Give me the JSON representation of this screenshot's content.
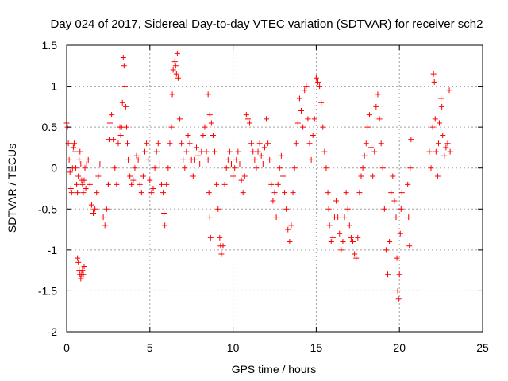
{
  "chart_data": {
    "type": "scatter",
    "title": "Day 024 of 2017, Sidereal Day-to-day VTEC variation (SDTVAR) for receiver sch2",
    "xlabel": "GPS time / hours",
    "ylabel": "SDTVAR / TECUs",
    "xlim": [
      0,
      25
    ],
    "ylim": [
      -2,
      1.5
    ],
    "grid": true,
    "marker": "+",
    "x_ticks": [
      0,
      5,
      10,
      15,
      20,
      25
    ],
    "y_ticks": [
      -2,
      -1.5,
      -1,
      -0.5,
      0,
      0.5,
      1,
      1.5
    ],
    "x_tick_labels": [
      "0",
      "5",
      "10",
      "15",
      "20",
      "25"
    ],
    "y_tick_labels": [
      "-2",
      "-1.5",
      "-1",
      "-0.5",
      "0",
      "0.5",
      "1",
      "1.5"
    ],
    "colors": {
      "points": "#ff0000",
      "grid": "#a0a0a0",
      "axes": "#000000"
    },
    "series": [
      {
        "name": "SDTVAR",
        "points": [
          [
            0.0,
            0.55
          ],
          [
            0.05,
            0.5
          ],
          [
            0.1,
            0.3
          ],
          [
            0.15,
            0.1
          ],
          [
            0.2,
            -0.05
          ],
          [
            0.25,
            -0.25
          ],
          [
            0.3,
            -0.3
          ],
          [
            0.35,
            0.0
          ],
          [
            0.4,
            0.25
          ],
          [
            0.45,
            0.3
          ],
          [
            0.5,
            0.2
          ],
          [
            0.55,
            0.0
          ],
          [
            0.6,
            -0.2
          ],
          [
            0.65,
            -0.3
          ],
          [
            0.7,
            -0.1
          ],
          [
            0.75,
            0.1
          ],
          [
            0.8,
            0.2
          ],
          [
            0.85,
            0.05
          ],
          [
            0.9,
            -0.15
          ],
          [
            0.95,
            -0.2
          ],
          [
            1.0,
            -0.3
          ],
          [
            1.05,
            -0.15
          ],
          [
            1.1,
            0.0
          ],
          [
            1.15,
            -0.25
          ],
          [
            0.65,
            -1.1
          ],
          [
            0.7,
            -1.15
          ],
          [
            0.75,
            -1.25
          ],
          [
            0.8,
            -1.3
          ],
          [
            0.85,
            -1.35
          ],
          [
            0.9,
            -1.3
          ],
          [
            0.95,
            -1.25
          ],
          [
            1.0,
            -1.3
          ],
          [
            1.05,
            -1.2
          ],
          [
            1.2,
            0.05
          ],
          [
            1.3,
            0.1
          ],
          [
            1.4,
            -0.2
          ],
          [
            1.5,
            -0.45
          ],
          [
            1.6,
            -0.55
          ],
          [
            1.7,
            -0.5
          ],
          [
            1.8,
            -0.3
          ],
          [
            1.9,
            -0.1
          ],
          [
            2.0,
            0.05
          ],
          [
            2.2,
            -0.6
          ],
          [
            2.3,
            -0.7
          ],
          [
            2.4,
            -0.5
          ],
          [
            2.5,
            -0.2
          ],
          [
            2.55,
            0.35
          ],
          [
            2.6,
            0.55
          ],
          [
            2.7,
            0.65
          ],
          [
            2.8,
            0.35
          ],
          [
            2.9,
            0.0
          ],
          [
            3.0,
            -0.2
          ],
          [
            3.1,
            0.3
          ],
          [
            3.2,
            0.5
          ],
          [
            3.25,
            0.4
          ],
          [
            3.3,
            0.5
          ],
          [
            3.35,
            0.8
          ],
          [
            3.4,
            1.35
          ],
          [
            3.45,
            1.25
          ],
          [
            3.5,
            1.0
          ],
          [
            3.55,
            0.75
          ],
          [
            3.6,
            0.5
          ],
          [
            3.65,
            0.3
          ],
          [
            3.7,
            0.1
          ],
          [
            3.8,
            -0.1
          ],
          [
            3.9,
            -0.2
          ],
          [
            4.0,
            -0.15
          ],
          [
            4.1,
            0.0
          ],
          [
            4.2,
            0.15
          ],
          [
            4.3,
            0.1
          ],
          [
            4.4,
            -0.2
          ],
          [
            4.5,
            -0.3
          ],
          [
            4.6,
            -0.1
          ],
          [
            4.7,
            0.2
          ],
          [
            4.8,
            0.3
          ],
          [
            4.9,
            0.1
          ],
          [
            5.0,
            -0.15
          ],
          [
            5.1,
            -0.3
          ],
          [
            5.2,
            -0.25
          ],
          [
            5.3,
            0.0
          ],
          [
            5.4,
            0.2
          ],
          [
            5.5,
            0.3
          ],
          [
            5.6,
            0.05
          ],
          [
            5.7,
            -0.2
          ],
          [
            5.8,
            -0.3
          ],
          [
            5.85,
            -0.55
          ],
          [
            5.9,
            -0.7
          ],
          [
            6.0,
            -0.2
          ],
          [
            6.1,
            0.0
          ],
          [
            6.2,
            0.3
          ],
          [
            6.3,
            0.5
          ],
          [
            6.35,
            0.9
          ],
          [
            6.4,
            1.2
          ],
          [
            6.5,
            1.3
          ],
          [
            6.55,
            1.25
          ],
          [
            6.6,
            1.15
          ],
          [
            6.65,
            1.4
          ],
          [
            6.7,
            1.1
          ],
          [
            6.8,
            0.6
          ],
          [
            6.9,
            0.3
          ],
          [
            7.0,
            0.1
          ],
          [
            7.1,
            0.0
          ],
          [
            7.2,
            0.2
          ],
          [
            7.3,
            0.4
          ],
          [
            7.4,
            0.3
          ],
          [
            7.5,
            0.1
          ],
          [
            7.6,
            -0.1
          ],
          [
            7.7,
            0.1
          ],
          [
            7.8,
            0.25
          ],
          [
            7.9,
            0.15
          ],
          [
            8.0,
            0.05
          ],
          [
            8.1,
            0.2
          ],
          [
            8.2,
            0.4
          ],
          [
            8.3,
            0.5
          ],
          [
            8.4,
            0.2
          ],
          [
            8.5,
            0.1
          ],
          [
            8.55,
            -0.3
          ],
          [
            8.6,
            -0.6
          ],
          [
            8.65,
            -0.85
          ],
          [
            8.5,
            0.9
          ],
          [
            8.6,
            0.65
          ],
          [
            8.7,
            0.55
          ],
          [
            8.8,
            0.4
          ],
          [
            8.9,
            0.2
          ],
          [
            9.0,
            -0.2
          ],
          [
            9.1,
            -0.5
          ],
          [
            9.2,
            -0.85
          ],
          [
            9.25,
            -0.95
          ],
          [
            9.3,
            -1.05
          ],
          [
            9.4,
            -0.95
          ],
          [
            9.5,
            -0.2
          ],
          [
            9.6,
            0.0
          ],
          [
            9.7,
            0.1
          ],
          [
            9.8,
            0.2
          ],
          [
            9.9,
            0.05
          ],
          [
            10.0,
            -0.1
          ],
          [
            10.1,
            0.0
          ],
          [
            10.2,
            0.1
          ],
          [
            10.3,
            0.2
          ],
          [
            10.4,
            0.05
          ],
          [
            10.5,
            -0.15
          ],
          [
            10.6,
            -0.3
          ],
          [
            10.7,
            -0.1
          ],
          [
            10.8,
            0.65
          ],
          [
            10.9,
            0.6
          ],
          [
            11.0,
            0.55
          ],
          [
            11.1,
            0.3
          ],
          [
            11.2,
            0.2
          ],
          [
            11.3,
            0.1
          ],
          [
            11.4,
            0.0
          ],
          [
            11.5,
            0.2
          ],
          [
            11.6,
            0.3
          ],
          [
            11.7,
            0.15
          ],
          [
            11.8,
            0.05
          ],
          [
            11.9,
            0.25
          ],
          [
            12.0,
            0.6
          ],
          [
            12.1,
            0.3
          ],
          [
            12.2,
            0.1
          ],
          [
            12.3,
            -0.2
          ],
          [
            12.4,
            -0.4
          ],
          [
            12.5,
            -0.3
          ],
          [
            12.6,
            -0.6
          ],
          [
            12.7,
            -0.2
          ],
          [
            12.8,
            0.0
          ],
          [
            12.9,
            0.15
          ],
          [
            13.0,
            -0.1
          ],
          [
            13.1,
            -0.3
          ],
          [
            13.2,
            -0.5
          ],
          [
            13.3,
            -0.75
          ],
          [
            13.4,
            -0.9
          ],
          [
            13.5,
            -0.7
          ],
          [
            13.6,
            -0.3
          ],
          [
            13.7,
            0.0
          ],
          [
            13.8,
            0.3
          ],
          [
            13.9,
            0.55
          ],
          [
            14.0,
            0.85
          ],
          [
            14.1,
            0.7
          ],
          [
            14.2,
            0.5
          ],
          [
            14.3,
            0.95
          ],
          [
            14.4,
            1.0
          ],
          [
            14.5,
            0.6
          ],
          [
            14.6,
            0.3
          ],
          [
            14.7,
            0.1
          ],
          [
            14.8,
            0.4
          ],
          [
            14.9,
            0.6
          ],
          [
            15.0,
            1.1
          ],
          [
            15.1,
            1.05
          ],
          [
            15.2,
            1.0
          ],
          [
            15.3,
            0.8
          ],
          [
            15.4,
            0.5
          ],
          [
            15.5,
            0.2
          ],
          [
            15.6,
            0.0
          ],
          [
            15.7,
            -0.3
          ],
          [
            15.75,
            -0.5
          ],
          [
            15.8,
            -0.7
          ],
          [
            15.9,
            -0.9
          ],
          [
            16.0,
            -0.85
          ],
          [
            16.1,
            -0.6
          ],
          [
            16.2,
            -0.4
          ],
          [
            16.3,
            -0.6
          ],
          [
            16.4,
            -0.8
          ],
          [
            16.5,
            -1.0
          ],
          [
            16.6,
            -0.9
          ],
          [
            16.7,
            -0.6
          ],
          [
            16.8,
            -0.3
          ],
          [
            16.9,
            -0.5
          ],
          [
            17.0,
            -0.7
          ],
          [
            17.1,
            -0.85
          ],
          [
            17.2,
            -0.9
          ],
          [
            17.3,
            -1.05
          ],
          [
            17.4,
            -1.1
          ],
          [
            17.5,
            -0.85
          ],
          [
            17.6,
            -0.3
          ],
          [
            17.7,
            -0.1
          ],
          [
            17.8,
            0.0
          ],
          [
            17.9,
            0.15
          ],
          [
            18.0,
            0.3
          ],
          [
            18.1,
            0.5
          ],
          [
            18.2,
            0.65
          ],
          [
            18.3,
            0.25
          ],
          [
            18.4,
            -0.1
          ],
          [
            18.5,
            0.2
          ],
          [
            18.6,
            0.75
          ],
          [
            18.7,
            0.9
          ],
          [
            18.8,
            0.6
          ],
          [
            18.9,
            0.3
          ],
          [
            19.0,
            0.0
          ],
          [
            19.1,
            -0.5
          ],
          [
            19.2,
            -1.0
          ],
          [
            19.3,
            -1.3
          ],
          [
            19.4,
            -0.9
          ],
          [
            19.5,
            -0.3
          ],
          [
            19.6,
            -0.1
          ],
          [
            19.7,
            -0.4
          ],
          [
            19.8,
            -0.6
          ],
          [
            19.85,
            -1.1
          ],
          [
            19.9,
            -1.5
          ],
          [
            19.95,
            -1.6
          ],
          [
            20.0,
            -1.3
          ],
          [
            20.05,
            -0.8
          ],
          [
            20.1,
            -0.5
          ],
          [
            20.15,
            -0.3
          ],
          [
            20.5,
            -0.2
          ],
          [
            20.55,
            -0.6
          ],
          [
            20.6,
            -0.95
          ],
          [
            20.65,
            0.0
          ],
          [
            20.7,
            0.35
          ],
          [
            21.8,
            0.2
          ],
          [
            21.9,
            0.0
          ],
          [
            22.0,
            0.5
          ],
          [
            22.05,
            1.15
          ],
          [
            22.1,
            1.05
          ],
          [
            22.15,
            0.6
          ],
          [
            22.2,
            0.2
          ],
          [
            22.3,
            -0.1
          ],
          [
            22.35,
            0.3
          ],
          [
            22.4,
            0.55
          ],
          [
            22.5,
            0.85
          ],
          [
            22.55,
            0.75
          ],
          [
            22.6,
            0.4
          ],
          [
            22.7,
            0.15
          ],
          [
            22.8,
            0.25
          ],
          [
            22.9,
            0.3
          ],
          [
            23.0,
            0.95
          ],
          [
            23.05,
            0.2
          ]
        ]
      }
    ]
  }
}
